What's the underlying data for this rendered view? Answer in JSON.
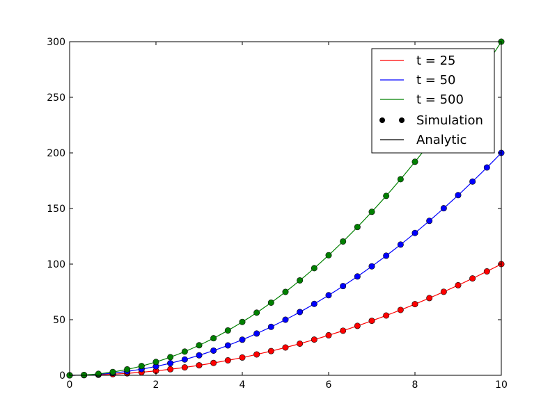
{
  "chart_data": {
    "type": "line",
    "title": "",
    "xlabel": "",
    "ylabel": "",
    "xlim": [
      0,
      10
    ],
    "ylim": [
      0,
      300
    ],
    "xticks": [
      0,
      2,
      4,
      6,
      8,
      10
    ],
    "yticks": [
      0,
      50,
      100,
      150,
      200,
      250,
      300
    ],
    "grid": false,
    "legend_position": "top-right",
    "x": [
      0,
      0.3333,
      0.6667,
      1,
      1.3333,
      1.6667,
      2,
      2.3333,
      2.6667,
      3,
      3.3333,
      3.6667,
      4,
      4.3333,
      4.6667,
      5,
      5.3333,
      5.6667,
      6,
      6.3333,
      6.6667,
      7,
      7.3333,
      7.6667,
      8,
      8.3333,
      8.6667,
      9,
      9.3333,
      9.6667,
      10
    ],
    "series": [
      {
        "name": "t = 25",
        "color": "#ff0000",
        "coefficient": 1,
        "values": [
          0,
          0.11,
          0.44,
          1,
          1.78,
          2.78,
          4,
          5.44,
          7.11,
          9,
          11.11,
          13.44,
          16,
          18.78,
          21.78,
          25,
          28.44,
          32.11,
          36,
          40.11,
          44.44,
          49,
          53.78,
          58.78,
          64,
          69.44,
          75.11,
          81,
          87.11,
          93.44,
          100
        ]
      },
      {
        "name": "t = 50",
        "color": "#0000ff",
        "coefficient": 2,
        "values": [
          0,
          0.22,
          0.89,
          2,
          3.56,
          5.56,
          8,
          10.89,
          14.22,
          18,
          22.22,
          26.89,
          32,
          37.56,
          43.56,
          50,
          56.89,
          64.22,
          72,
          80.22,
          88.89,
          98,
          107.56,
          117.56,
          128,
          138.89,
          150.22,
          162,
          174.22,
          186.89,
          200
        ]
      },
      {
        "name": "t = 500",
        "color": "#008000",
        "coefficient": 3,
        "values": [
          0,
          0.33,
          1.33,
          3,
          5.33,
          8.33,
          12,
          16.33,
          21.33,
          27,
          33.33,
          40.33,
          48,
          56.33,
          65.33,
          75,
          85.33,
          96.33,
          108,
          120.33,
          133.33,
          147,
          161.33,
          176.33,
          192,
          208.33,
          225.33,
          243,
          261.33,
          280.33,
          300
        ]
      }
    ],
    "legend": [
      {
        "label": "t = 25",
        "style": "line",
        "color": "#ff0000"
      },
      {
        "label": "t = 50",
        "style": "line",
        "color": "#0000ff"
      },
      {
        "label": "t = 500",
        "style": "line",
        "color": "#008000"
      },
      {
        "label": "Simulation",
        "style": "markers",
        "color": "#000000"
      },
      {
        "label": "Analytic",
        "style": "line",
        "color": "#000000"
      }
    ]
  }
}
